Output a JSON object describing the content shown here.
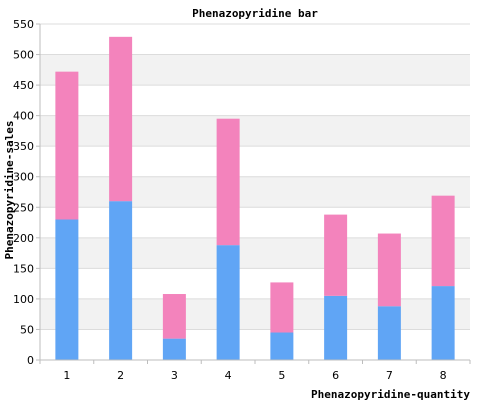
{
  "chart_data": {
    "type": "bar",
    "stacked": true,
    "title": "Phenazopyridine bar",
    "xlabel": "Phenazopyridine-quantity",
    "ylabel": "Phenazopyridine-sales",
    "categories": [
      "1",
      "2",
      "3",
      "4",
      "5",
      "6",
      "7",
      "8"
    ],
    "series": [
      {
        "color": "#60a5f5",
        "values": [
          230,
          260,
          35,
          188,
          45,
          105,
          88,
          121
        ]
      },
      {
        "color": "#f383bc",
        "values": [
          242,
          269,
          73,
          207,
          82,
          133,
          119,
          148
        ]
      }
    ],
    "ylim": [
      0,
      550
    ],
    "yticks": [
      0,
      50,
      100,
      150,
      200,
      250,
      300,
      350,
      400,
      450,
      500,
      550
    ],
    "grid": true,
    "band_color": "#f2f2f2"
  }
}
